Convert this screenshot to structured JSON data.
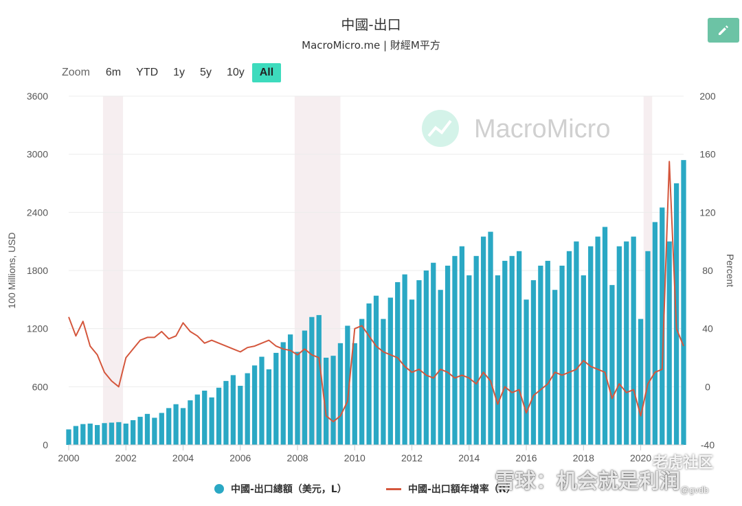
{
  "header": {
    "title": "中國-出口",
    "subtitle": "MacroMicro.me | 財經M平方"
  },
  "toolbar": {
    "edit_icon": "pencil-icon"
  },
  "zoom": {
    "label": "Zoom",
    "options": [
      "6m",
      "YTD",
      "1y",
      "5y",
      "10y",
      "All"
    ],
    "selected": "All"
  },
  "watermark": {
    "text": "MacroMicro",
    "logo": "chart-logo-icon"
  },
  "overlay": {
    "site_name": "老虎社区",
    "platform_text": "雪球：机会就是利润",
    "user_handle": "@gvdb"
  },
  "colors": {
    "bars": "#2aa8c4",
    "line": "#d4563c",
    "recession_band": "#f6eef0",
    "accent": "#3ddbbd"
  },
  "chart_data": {
    "type": "bar+line",
    "title": "中國-出口",
    "left_axis": {
      "label": "100 Millions, USD",
      "min": 0,
      "max": 3600,
      "ticks": [
        0,
        600,
        1200,
        1800,
        2400,
        3000,
        3600
      ]
    },
    "right_axis": {
      "label": "Percent",
      "min": -40,
      "max": 200,
      "ticks": [
        -40,
        0,
        40,
        80,
        120,
        160,
        200
      ]
    },
    "x_axis": {
      "min": 2000,
      "max": 2021.5,
      "ticks": [
        2000,
        2002,
        2004,
        2006,
        2008,
        2010,
        2012,
        2014,
        2016,
        2018,
        2020
      ]
    },
    "recession_bands": [
      [
        2001.2,
        2001.9
      ],
      [
        2007.9,
        2009.5
      ],
      [
        2020.1,
        2020.4
      ]
    ],
    "legend": [
      {
        "name": "中國-出口總額（美元，L）",
        "marker": "circle"
      },
      {
        "name": "中國-出口額年增率（R）",
        "marker": "line"
      }
    ],
    "series": [
      {
        "name": "中國-出口總額（美元，L）",
        "type": "bar",
        "axis": "left",
        "x": [
          2000.0,
          2000.25,
          2000.5,
          2000.75,
          2001.0,
          2001.25,
          2001.5,
          2001.75,
          2002.0,
          2002.25,
          2002.5,
          2002.75,
          2003.0,
          2003.25,
          2003.5,
          2003.75,
          2004.0,
          2004.25,
          2004.5,
          2004.75,
          2005.0,
          2005.25,
          2005.5,
          2005.75,
          2006.0,
          2006.25,
          2006.5,
          2006.75,
          2007.0,
          2007.25,
          2007.5,
          2007.75,
          2008.0,
          2008.25,
          2008.5,
          2008.75,
          2009.0,
          2009.25,
          2009.5,
          2009.75,
          2010.0,
          2010.25,
          2010.5,
          2010.75,
          2011.0,
          2011.25,
          2011.5,
          2011.75,
          2012.0,
          2012.25,
          2012.5,
          2012.75,
          2013.0,
          2013.25,
          2013.5,
          2013.75,
          2014.0,
          2014.25,
          2014.5,
          2014.75,
          2015.0,
          2015.25,
          2015.5,
          2015.75,
          2016.0,
          2016.25,
          2016.5,
          2016.75,
          2017.0,
          2017.25,
          2017.5,
          2017.75,
          2018.0,
          2018.25,
          2018.5,
          2018.75,
          2019.0,
          2019.25,
          2019.5,
          2019.75,
          2020.0,
          2020.25,
          2020.5,
          2020.75,
          2021.0,
          2021.25,
          2021.5
        ],
        "values": [
          160,
          195,
          215,
          220,
          205,
          225,
          230,
          235,
          220,
          255,
          290,
          320,
          280,
          330,
          380,
          420,
          380,
          460,
          520,
          560,
          490,
          590,
          660,
          720,
          610,
          740,
          820,
          910,
          780,
          950,
          1060,
          1140,
          960,
          1180,
          1320,
          1340,
          900,
          920,
          1050,
          1230,
          1050,
          1300,
          1460,
          1540,
          1300,
          1520,
          1680,
          1760,
          1500,
          1700,
          1800,
          1880,
          1600,
          1850,
          1950,
          2050,
          1750,
          1950,
          2150,
          2200,
          1750,
          1900,
          1950,
          2000,
          1500,
          1700,
          1850,
          1900,
          1600,
          1850,
          2000,
          2100,
          1750,
          2050,
          2150,
          2250,
          1650,
          2050,
          2100,
          2150,
          1300,
          2000,
          2300,
          2450,
          2100,
          2700,
          2940
        ]
      },
      {
        "name": "中國-出口額年增率（R）",
        "type": "line",
        "axis": "right",
        "x": [
          2000.0,
          2000.25,
          2000.5,
          2000.75,
          2001.0,
          2001.25,
          2001.5,
          2001.75,
          2002.0,
          2002.25,
          2002.5,
          2002.75,
          2003.0,
          2003.25,
          2003.5,
          2003.75,
          2004.0,
          2004.25,
          2004.5,
          2004.75,
          2005.0,
          2005.25,
          2005.5,
          2005.75,
          2006.0,
          2006.25,
          2006.5,
          2006.75,
          2007.0,
          2007.25,
          2007.5,
          2007.75,
          2008.0,
          2008.25,
          2008.5,
          2008.75,
          2009.0,
          2009.25,
          2009.5,
          2009.75,
          2010.0,
          2010.25,
          2010.5,
          2010.75,
          2011.0,
          2011.25,
          2011.5,
          2011.75,
          2012.0,
          2012.25,
          2012.5,
          2012.75,
          2013.0,
          2013.25,
          2013.5,
          2013.75,
          2014.0,
          2014.25,
          2014.5,
          2014.75,
          2015.0,
          2015.25,
          2015.5,
          2015.75,
          2016.0,
          2016.25,
          2016.5,
          2016.75,
          2017.0,
          2017.25,
          2017.5,
          2017.75,
          2018.0,
          2018.25,
          2018.5,
          2018.75,
          2019.0,
          2019.25,
          2019.5,
          2019.75,
          2020.0,
          2020.25,
          2020.5,
          2020.75,
          2021.0,
          2021.25,
          2021.5
        ],
        "values": [
          48,
          35,
          45,
          28,
          22,
          10,
          4,
          0,
          20,
          26,
          32,
          34,
          34,
          38,
          33,
          35,
          44,
          38,
          35,
          30,
          32,
          30,
          28,
          26,
          24,
          27,
          28,
          30,
          32,
          28,
          26,
          25,
          22,
          26,
          22,
          20,
          -20,
          -24,
          -20,
          -10,
          40,
          42,
          35,
          28,
          24,
          22,
          20,
          14,
          10,
          12,
          8,
          6,
          12,
          10,
          6,
          8,
          6,
          2,
          10,
          4,
          -12,
          0,
          -4,
          -2,
          -18,
          -6,
          -2,
          2,
          10,
          8,
          10,
          12,
          18,
          14,
          12,
          10,
          -8,
          2,
          -4,
          -2,
          -20,
          2,
          10,
          12,
          155,
          40,
          28
        ]
      }
    ]
  }
}
